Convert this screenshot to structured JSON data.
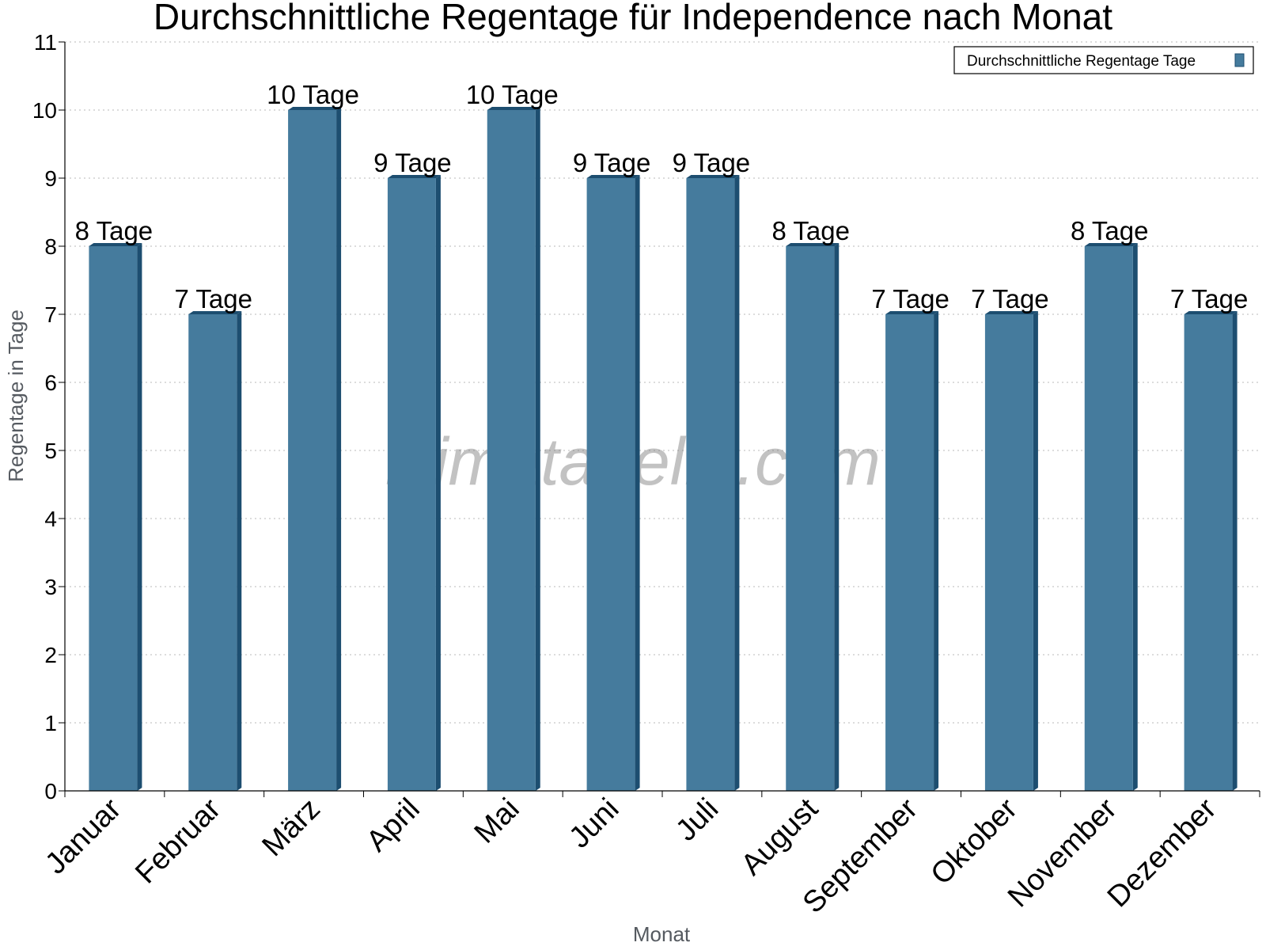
{
  "chart_data": {
    "type": "bar",
    "title": "Durchschnittliche Regentage für Independence nach Monat",
    "xlabel": "Monat",
    "ylabel": "Regentage in Tage",
    "categories": [
      "Januar",
      "Februar",
      "März",
      "April",
      "Mai",
      "Juni",
      "Juli",
      "August",
      "September",
      "Oktober",
      "November",
      "Dezember"
    ],
    "series": [
      {
        "name": "Durchschnittliche Regentage Tage",
        "values": [
          8,
          7,
          10,
          9,
          10,
          9,
          9,
          8,
          7,
          7,
          8,
          7
        ],
        "labels": [
          "8 Tage",
          "7 Tage",
          "10 Tage",
          "9 Tage",
          "10 Tage",
          "9 Tage",
          "9 Tage",
          "8 Tage",
          "7 Tage",
          "7 Tage",
          "8 Tage",
          "7 Tage"
        ]
      }
    ],
    "ylim": [
      0,
      11
    ],
    "yticks": [
      "0",
      "1",
      "2",
      "3",
      "4",
      "5",
      "6",
      "7",
      "8",
      "9",
      "10",
      "11"
    ],
    "grid": true,
    "legend_position": "top-right",
    "colors": {
      "bar": "#457b9d",
      "bar_side": "#1d4e70",
      "bar_top": "#1d4e70"
    }
  },
  "watermark": "klimatabelle.com"
}
